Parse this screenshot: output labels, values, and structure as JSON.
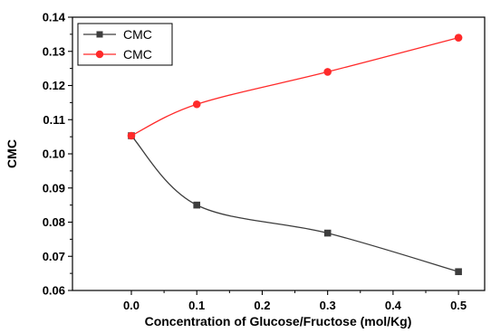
{
  "chart_data": {
    "type": "line",
    "title": "",
    "xlabel": "Concentration of Glucose/Fructose (mol/Kg)",
    "ylabel": "CMC",
    "xlim": [
      -0.09,
      0.54
    ],
    "ylim": [
      0.06,
      0.14
    ],
    "xticks": [
      0.0,
      0.1,
      0.2,
      0.3,
      0.4,
      0.5
    ],
    "xtick_labels": [
      "0.0",
      "0.1",
      "0.2",
      "0.3",
      "0.4",
      "0.5"
    ],
    "yticks": [
      0.06,
      0.07,
      0.08,
      0.09,
      0.1,
      0.11,
      0.12,
      0.13,
      0.14
    ],
    "ytick_labels": [
      "0.06",
      "0.07",
      "0.08",
      "0.09",
      "0.10",
      "0.11",
      "0.12",
      "0.13",
      "0.14"
    ],
    "grid": false,
    "legend_position": "top-left",
    "series": [
      {
        "name": "CMC",
        "color": "#3d3d3d",
        "marker": "square",
        "x": [
          0.0,
          0.1,
          0.3,
          0.5
        ],
        "y": [
          0.1053,
          0.085,
          0.0768,
          0.0655
        ]
      },
      {
        "name": "CMC",
        "color": "#ff2a2a",
        "marker": "circle",
        "x": [
          0.0,
          0.1,
          0.3,
          0.5
        ],
        "y": [
          0.1053,
          0.1145,
          0.124,
          0.134
        ]
      }
    ]
  }
}
